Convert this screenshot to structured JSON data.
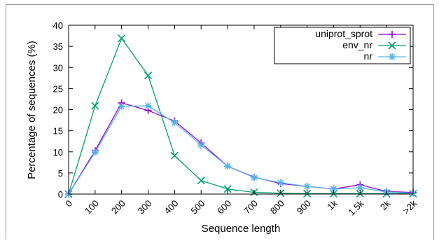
{
  "chart_data": {
    "type": "line",
    "title": "",
    "xlabel": "Sequence length",
    "ylabel": "Percentage of sequences (%)",
    "categories": [
      "0",
      "100",
      "200",
      "300",
      "400",
      "500",
      "600",
      "700",
      "800",
      "900",
      "1k",
      "1.5k",
      "2k",
      ">2k"
    ],
    "yticks": [
      "0",
      "5",
      "10",
      "15",
      "20",
      "25",
      "30",
      "35",
      "40"
    ],
    "ylim": [
      0,
      40
    ],
    "grid": false,
    "legend_position": "top-right",
    "series": [
      {
        "name": "uniprot_sprot",
        "marker": "plus",
        "color": "#9400d3",
        "values": [
          0,
          10.3,
          21.6,
          19.8,
          17.3,
          12.1,
          6.6,
          4.0,
          2.5,
          1.8,
          1.2,
          2.2,
          0.6,
          0.4
        ]
      },
      {
        "name": "env_nr",
        "marker": "x",
        "color": "#009e73",
        "values": [
          0,
          20.9,
          36.9,
          28.1,
          9.1,
          3.2,
          1.2,
          0.4,
          0.2,
          0.1,
          0.1,
          0.1,
          0.1,
          0.1
        ]
      },
      {
        "name": "nr",
        "marker": "star",
        "color": "#56b4e9",
        "values": [
          0,
          9.9,
          20.8,
          20.9,
          16.9,
          11.6,
          6.6,
          3.9,
          2.7,
          1.8,
          1.2,
          1.5,
          0.5,
          0.2
        ]
      }
    ]
  }
}
